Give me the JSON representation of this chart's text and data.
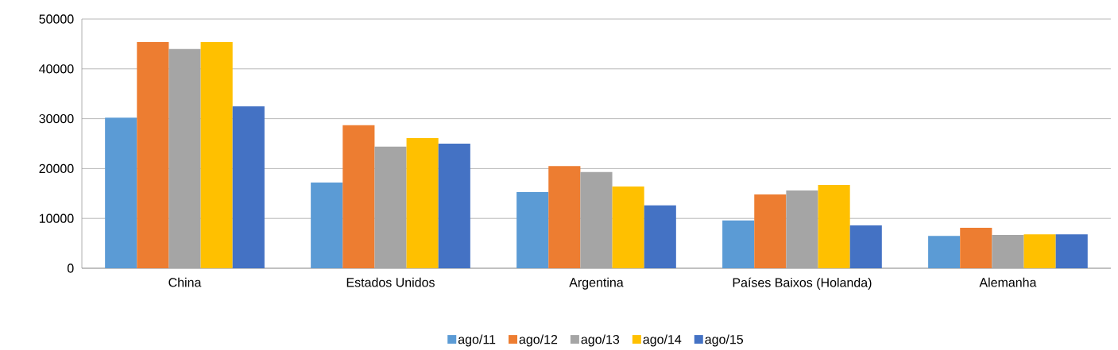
{
  "chart_data": {
    "type": "bar",
    "categories": [
      "China",
      "Estados Unidos",
      "Argentina",
      "Países Baixos (Holanda)",
      "Alemanha"
    ],
    "series": [
      {
        "name": "ago/11",
        "color": "#5b9bd5",
        "values": [
          30200,
          17200,
          15300,
          9600,
          6500
        ]
      },
      {
        "name": "ago/12",
        "color": "#ed7d31",
        "values": [
          45400,
          28700,
          20500,
          14800,
          8100
        ]
      },
      {
        "name": "ago/13",
        "color": "#a5a5a5",
        "values": [
          44000,
          24400,
          19300,
          15600,
          6700
        ]
      },
      {
        "name": "ago/14",
        "color": "#ffc000",
        "values": [
          45400,
          26100,
          16400,
          16700,
          6800
        ]
      },
      {
        "name": "ago/15",
        "color": "#4472c4",
        "values": [
          32500,
          25000,
          12600,
          8600,
          6800
        ]
      }
    ],
    "ylim": [
      0,
      50000
    ],
    "yticks": [
      0,
      10000,
      20000,
      30000,
      40000,
      50000
    ],
    "grid": "y",
    "legend": "bottom"
  }
}
